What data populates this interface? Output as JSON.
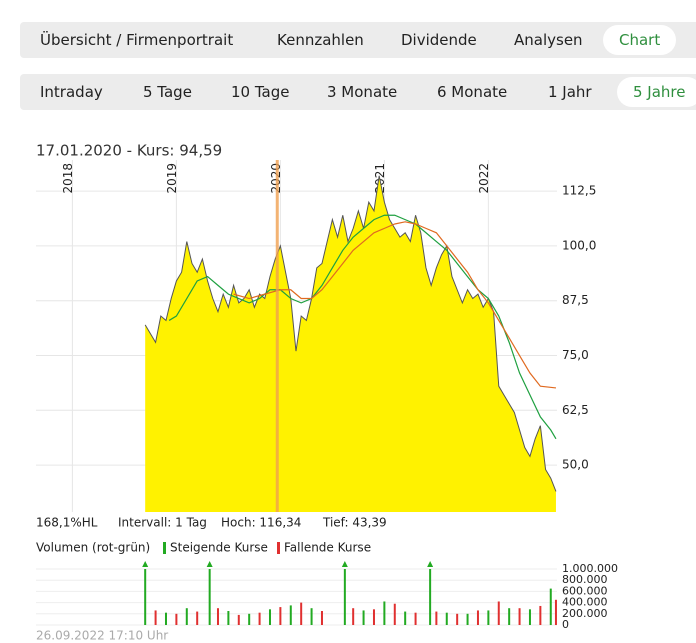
{
  "nav": {
    "tabs": [
      "Übersicht / Firmenportrait",
      "Kennzahlen",
      "Dividende",
      "Analysen",
      "Chart"
    ],
    "active": 4
  },
  "periods": {
    "tabs": [
      "Intraday",
      "5 Tage",
      "10 Tage",
      "3 Monate",
      "6 Monate",
      "1 Jahr",
      "5 Jahre"
    ],
    "active": 6
  },
  "chart_data": [
    {
      "type": "area",
      "title": "17.01.2020  -  Kurs: 94,59",
      "stats": [
        "168,1%HL",
        "Intervall: 1 Tag",
        "Hoch: 116,34",
        "Tief: 43,39"
      ],
      "xlim": [
        2017.65,
        2022.66
      ],
      "xticks": [
        2018,
        2019,
        2020,
        2021,
        2022
      ],
      "ylim": [
        39.3,
        119.6
      ],
      "yticks": [
        {
          "value": 50,
          "label": "50,0"
        },
        {
          "value": 62.5,
          "label": "62,5"
        },
        {
          "value": 75,
          "label": "75,0"
        },
        {
          "value": 87.5,
          "label": "87,5"
        },
        {
          "value": 100,
          "label": "100,0"
        },
        {
          "value": 112.5,
          "label": "112,5"
        }
      ],
      "grid": true,
      "marker_x": 2019.97,
      "marker_color": "#f0a050",
      "series": [
        {
          "color": "#555555",
          "fill": "#fff200",
          "x": [
            2018.7,
            2018.75,
            2018.8,
            2018.85,
            2018.9,
            2018.95,
            2019.0,
            2019.05,
            2019.1,
            2019.15,
            2019.2,
            2019.25,
            2019.3,
            2019.35,
            2019.4,
            2019.45,
            2019.5,
            2019.55,
            2019.6,
            2019.65,
            2019.7,
            2019.75,
            2019.8,
            2019.85,
            2019.9,
            2019.95,
            2020.0,
            2020.05,
            2020.1,
            2020.15,
            2020.2,
            2020.25,
            2020.3,
            2020.35,
            2020.4,
            2020.45,
            2020.5,
            2020.55,
            2020.6,
            2020.65,
            2020.7,
            2020.75,
            2020.8,
            2020.85,
            2020.9,
            2020.95,
            2021.0,
            2021.05,
            2021.1,
            2021.15,
            2021.2,
            2021.25,
            2021.3,
            2021.35,
            2021.4,
            2021.45,
            2021.5,
            2021.55,
            2021.6,
            2021.65,
            2021.7,
            2021.75,
            2021.8,
            2021.85,
            2021.9,
            2021.95,
            2022.0,
            2022.05,
            2022.1,
            2022.15,
            2022.2,
            2022.25,
            2022.3,
            2022.35,
            2022.4,
            2022.45,
            2022.5,
            2022.55,
            2022.6,
            2022.65
          ],
          "values": [
            82,
            80,
            78,
            84,
            83,
            88,
            92,
            94,
            101,
            96,
            94,
            97,
            92,
            88,
            85,
            89,
            86,
            91,
            87,
            88,
            90,
            86,
            89,
            88,
            93,
            97,
            100,
            94,
            88,
            76,
            84,
            83,
            88,
            95,
            96,
            101,
            106,
            102,
            107,
            101,
            104,
            108,
            104,
            110,
            108,
            116,
            110,
            106,
            104,
            102,
            103,
            101,
            107,
            103,
            95,
            91,
            95,
            98,
            100,
            93,
            90,
            87,
            90,
            88,
            89,
            86,
            88,
            85,
            68,
            66,
            64,
            62,
            58,
            54,
            52,
            56,
            59,
            49,
            47,
            44
          ]
        },
        {
          "color": "#1fa040",
          "x": [
            2018.93,
            2019.0,
            2019.1,
            2019.2,
            2019.3,
            2019.4,
            2019.5,
            2019.6,
            2019.7,
            2019.8,
            2019.9,
            2020.0,
            2020.1,
            2020.2,
            2020.3,
            2020.4,
            2020.5,
            2020.6,
            2020.7,
            2020.8,
            2020.9,
            2021.0,
            2021.1,
            2021.2,
            2021.3,
            2021.4,
            2021.5,
            2021.6,
            2021.7,
            2021.8,
            2021.9,
            2022.0,
            2022.1,
            2022.2,
            2022.3,
            2022.4,
            2022.5,
            2022.6,
            2022.65
          ],
          "values": [
            83,
            84,
            88,
            92,
            93,
            91,
            89,
            88,
            87,
            88,
            90,
            90,
            88,
            87,
            88,
            91,
            95,
            99,
            102,
            104,
            106,
            107,
            107,
            106,
            105,
            103,
            101,
            99,
            96,
            93,
            90,
            88,
            84,
            78,
            71,
            66,
            61,
            58,
            56
          ]
        },
        {
          "color": "#e06a20",
          "x": [
            2019.55,
            2019.7,
            2019.85,
            2020.0,
            2020.1,
            2020.2,
            2020.3,
            2020.4,
            2020.5,
            2020.6,
            2020.7,
            2020.8,
            2020.9,
            2021.0,
            2021.1,
            2021.2,
            2021.3,
            2021.4,
            2021.5,
            2021.6,
            2021.7,
            2021.8,
            2021.9,
            2022.0,
            2022.1,
            2022.2,
            2022.3,
            2022.4,
            2022.5,
            2022.65
          ],
          "values": [
            89,
            88,
            89,
            90,
            90,
            88,
            88,
            90,
            93,
            96,
            99,
            101,
            103,
            104,
            105,
            105.5,
            105,
            104,
            103,
            100,
            97,
            94,
            90,
            87,
            83,
            79,
            75,
            71,
            68,
            67.6
          ]
        }
      ]
    },
    {
      "type": "bar",
      "title": "Volumen (rot-grün)",
      "xlim": [
        2017.65,
        2022.66
      ],
      "ylim": [
        0,
        1000000
      ],
      "yticks": [
        0,
        {
          "value": 200000,
          "label": "200.000"
        },
        {
          "value": 400000,
          "label": "400.000"
        },
        {
          "value": 600000,
          "label": "600.000"
        },
        {
          "value": 800000,
          "label": "800.000"
        },
        {
          "value": 1000000,
          "label": "1.000.000"
        }
      ],
      "series": [
        {
          "name": "Steigende Kurse",
          "color": "#22aa22",
          "x": [
            2018.7,
            2018.9,
            2019.1,
            2019.32,
            2019.5,
            2019.7,
            2019.9,
            2020.1,
            2020.3,
            2020.62,
            2020.8,
            2021.0,
            2021.2,
            2021.44,
            2021.6,
            2021.8,
            2022.0,
            2022.2,
            2022.4,
            2022.6
          ],
          "values": [
            1000000,
            220000,
            300000,
            1000000,
            250000,
            200000,
            280000,
            350000,
            300000,
            1000000,
            260000,
            420000,
            240000,
            1000000,
            220000,
            200000,
            260000,
            300000,
            280000,
            650000
          ]
        },
        {
          "name": "Fallende Kurse",
          "color": "#e03030",
          "x": [
            2018.8,
            2019.0,
            2019.2,
            2019.4,
            2019.6,
            2019.8,
            2020.0,
            2020.2,
            2020.4,
            2020.7,
            2020.9,
            2021.1,
            2021.3,
            2021.5,
            2021.7,
            2021.9,
            2022.1,
            2022.3,
            2022.5,
            2022.65
          ],
          "values": [
            260000,
            200000,
            240000,
            300000,
            180000,
            220000,
            320000,
            400000,
            250000,
            300000,
            280000,
            380000,
            220000,
            240000,
            200000,
            260000,
            420000,
            300000,
            340000,
            450000
          ]
        }
      ]
    }
  ],
  "timestamp": "26.09.2022 17:10 Uhr"
}
